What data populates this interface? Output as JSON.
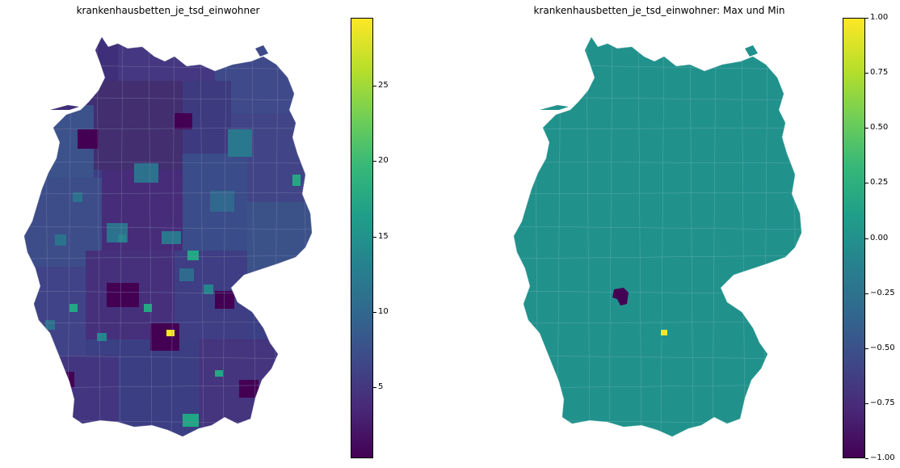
{
  "left": {
    "title": "krankenhausbetten_je_tsd_einwohner",
    "colorbar": {
      "min": 0.3,
      "max": 29.5,
      "ticks": [
        "5",
        "10",
        "15",
        "20",
        "25"
      ],
      "tick_values": [
        5,
        10,
        15,
        20,
        25
      ]
    }
  },
  "right": {
    "title": "krankenhausbetten_je_tsd_einwohner: Max und Min",
    "colorbar": {
      "min": -1.0,
      "max": 1.0,
      "ticks": [
        "1.00",
        "0.75",
        "0.50",
        "0.25",
        "0.00",
        "−0.25",
        "−0.50",
        "−0.75",
        "−1.00"
      ],
      "tick_values": [
        1.0,
        0.75,
        0.5,
        0.25,
        0.0,
        -0.25,
        -0.5,
        -0.75,
        -1.0
      ]
    }
  },
  "colors": {
    "viridis_dark": "#440154",
    "viridis_mid": "#21918c",
    "viridis_yellow": "#fde725",
    "low_region": "#3b3f84",
    "border": "#7a7fa8"
  }
}
